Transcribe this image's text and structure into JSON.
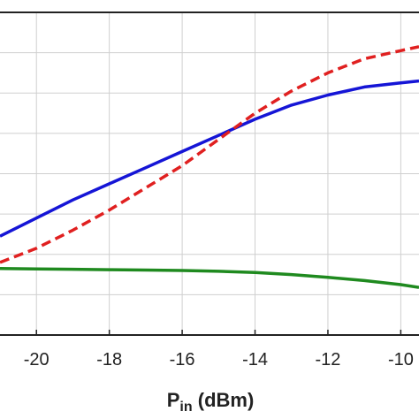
{
  "chart_data": {
    "type": "line",
    "xlabel_main": "P",
    "xlabel_sub": "in",
    "xlabel_unit": " (dBm)",
    "xlim": [
      -21,
      -9.5
    ],
    "ylim": [
      0,
      8
    ],
    "x_ticks": [
      -20,
      -18,
      -16,
      -14,
      -12,
      -10
    ],
    "x_tick_labels": [
      "-20",
      "-18",
      "-16",
      "-14",
      "-12",
      "-10"
    ],
    "grid": true,
    "series": [
      {
        "color": "#1515d6",
        "style": "solid",
        "x": [
          -21,
          -20,
          -19,
          -18,
          -17,
          -16,
          -15,
          -14,
          -13,
          -12,
          -11,
          -10,
          -9.5
        ],
        "y": [
          2.45,
          2.9,
          3.35,
          3.75,
          4.15,
          4.55,
          4.95,
          5.35,
          5.7,
          5.95,
          6.15,
          6.25,
          6.3
        ]
      },
      {
        "color": "#e02020",
        "style": "dashed",
        "x": [
          -21,
          -20,
          -19,
          -18,
          -17,
          -16,
          -15,
          -14,
          -13,
          -12,
          -11,
          -10,
          -9.5
        ],
        "y": [
          1.8,
          2.15,
          2.6,
          3.1,
          3.65,
          4.2,
          4.85,
          5.5,
          6.05,
          6.5,
          6.85,
          7.05,
          7.15
        ]
      },
      {
        "color": "#1f8a1f",
        "style": "solid",
        "x": [
          -21,
          -20,
          -19,
          -18,
          -17,
          -16,
          -15,
          -14,
          -13,
          -12,
          -11,
          -10,
          -9.5
        ],
        "y": [
          1.65,
          1.64,
          1.63,
          1.62,
          1.61,
          1.6,
          1.58,
          1.55,
          1.5,
          1.43,
          1.35,
          1.25,
          1.18
        ]
      }
    ]
  }
}
